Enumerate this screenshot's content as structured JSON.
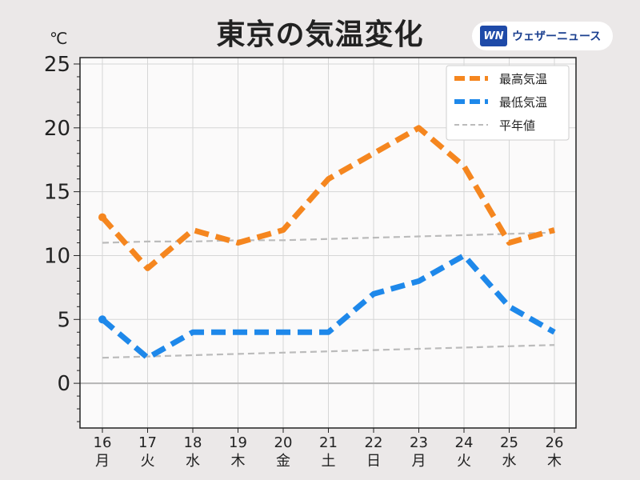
{
  "title": "東京の気温変化",
  "unit": "℃",
  "brand": {
    "logo_text": "WN",
    "name": "ウェザーニュース"
  },
  "chart_data": {
    "type": "line",
    "title": "東京の気温変化",
    "ylabel": "℃",
    "ylim": [
      -3.5,
      25.5
    ],
    "yticks": [
      0,
      5,
      10,
      15,
      20,
      25
    ],
    "grid": true,
    "legend_position": "top-right",
    "categories": [
      {
        "day": "16",
        "weekday": "月",
        "color": "#222222"
      },
      {
        "day": "17",
        "weekday": "火",
        "color": "#222222"
      },
      {
        "day": "18",
        "weekday": "水",
        "color": "#222222"
      },
      {
        "day": "19",
        "weekday": "木",
        "color": "#222222"
      },
      {
        "day": "20",
        "weekday": "金",
        "color": "#222222"
      },
      {
        "day": "21",
        "weekday": "土",
        "color": "#1a8ae8"
      },
      {
        "day": "22",
        "weekday": "日",
        "color": "#e0282a"
      },
      {
        "day": "23",
        "weekday": "月",
        "color": "#e0282a"
      },
      {
        "day": "24",
        "weekday": "火",
        "color": "#222222"
      },
      {
        "day": "25",
        "weekday": "水",
        "color": "#222222"
      },
      {
        "day": "26",
        "weekday": "木",
        "color": "#222222"
      }
    ],
    "series": [
      {
        "name": "最高気温",
        "color": "#f5861f",
        "style": "dashed",
        "values": [
          13,
          9,
          12,
          11,
          12,
          16,
          18,
          20,
          17,
          11,
          12
        ]
      },
      {
        "name": "最低気温",
        "color": "#1e88ea",
        "style": "dashed",
        "values": [
          5,
          2,
          4,
          4,
          4,
          4,
          7,
          8,
          10,
          6,
          4
        ]
      },
      {
        "name": "平年値",
        "color": "#bbbbbb",
        "style": "thin-dashed",
        "segments": [
          {
            "values": [
              11.0,
              11.1,
              11.1,
              11.2,
              11.2,
              11.3,
              11.4,
              11.5,
              11.6,
              11.7,
              11.8
            ]
          },
          {
            "values": [
              2.0,
              2.1,
              2.2,
              2.3,
              2.4,
              2.5,
              2.6,
              2.7,
              2.8,
              2.9,
              3.0
            ]
          }
        ]
      }
    ]
  }
}
